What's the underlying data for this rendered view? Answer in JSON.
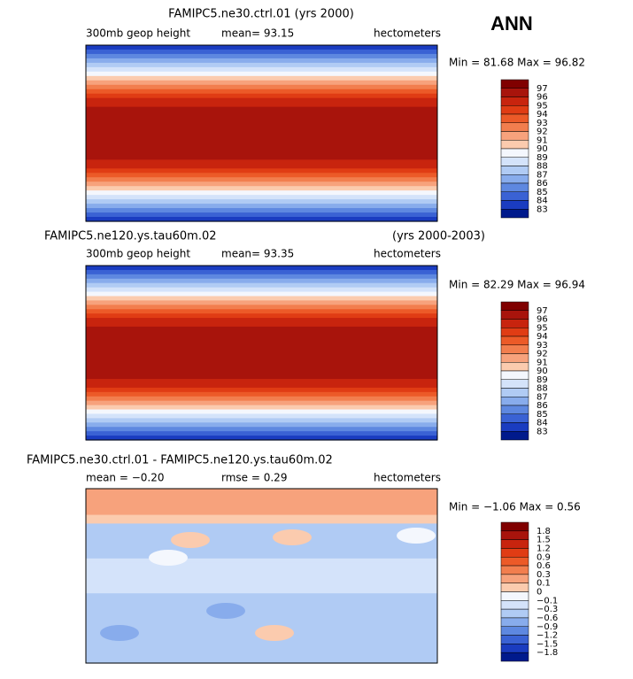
{
  "season": "ANN",
  "panels": [
    {
      "title": "FAMIPC5.ne30.ctrl.01 (yrs 2000)",
      "variable": "300mb geop height",
      "stat1": "mean=  93.15",
      "units": "hectometers",
      "minmax": "Min =  81.68 Max =  96.82",
      "colorbar": {
        "labels": [
          "97",
          "96",
          "95",
          "94",
          "93",
          "92",
          "91",
          "90",
          "89",
          "88",
          "87",
          "86",
          "85",
          "84",
          "83"
        ],
        "colors": [
          "#800000",
          "#a8140c",
          "#c8240e",
          "#e03c14",
          "#ec5a28",
          "#f27e4e",
          "#f7a27c",
          "#fbcbae",
          "#f4f7fd",
          "#d4e3fa",
          "#b0cbf4",
          "#88acec",
          "#5e88e0",
          "#3a62d4",
          "#1a3cc0",
          "#001a8c"
        ]
      }
    },
    {
      "title": "FAMIPC5.ne120.ys.tau60m.02",
      "years": "(yrs 2000-2003)",
      "variable": "300mb geop height",
      "stat1": "mean=  93.35",
      "units": "hectometers",
      "minmax": "Min =  82.29 Max =  96.94",
      "colorbar": {
        "labels": [
          "97",
          "96",
          "95",
          "94",
          "93",
          "92",
          "91",
          "90",
          "89",
          "88",
          "87",
          "86",
          "85",
          "84",
          "83"
        ],
        "colors": [
          "#800000",
          "#a8140c",
          "#c8240e",
          "#e03c14",
          "#ec5a28",
          "#f27e4e",
          "#f7a27c",
          "#fbcbae",
          "#f4f7fd",
          "#d4e3fa",
          "#b0cbf4",
          "#88acec",
          "#5e88e0",
          "#3a62d4",
          "#1a3cc0",
          "#001a8c"
        ]
      }
    },
    {
      "title": "FAMIPC5.ne30.ctrl.01 - FAMIPC5.ne120.ys.tau60m.02",
      "stat1": "mean =  −0.20",
      "stat2": "rmse =   0.29",
      "units": "hectometers",
      "minmax": "Min =  −1.06 Max =   0.56",
      "colorbar": {
        "labels": [
          "1.8",
          "1.5",
          "1.2",
          "0.9",
          "0.6",
          "0.3",
          "0.1",
          "0",
          "−0.1",
          "−0.3",
          "−0.6",
          "−0.9",
          "−1.2",
          "−1.5",
          "−1.8"
        ],
        "colors": [
          "#800000",
          "#a8140c",
          "#c8240e",
          "#e03c14",
          "#ec5a28",
          "#f27e4e",
          "#f7a27c",
          "#fbcbae",
          "#f4f7fd",
          "#d4e3fa",
          "#b0cbf4",
          "#88acec",
          "#5e88e0",
          "#3a62d4",
          "#1a3cc0",
          "#001a8c"
        ]
      }
    }
  ]
}
